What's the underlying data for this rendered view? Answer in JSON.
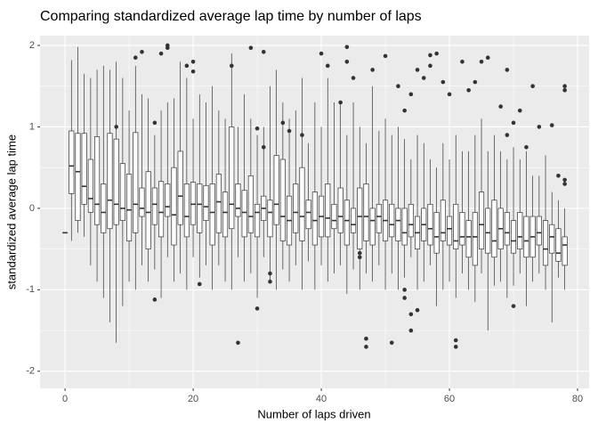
{
  "chart_data": {
    "type": "boxplot",
    "title": "Comparing standardized average lap time by number of laps",
    "x_label": "Number of laps driven",
    "y_label": "standardized average lap time",
    "xlim": [
      -3.9,
      81.8
    ],
    "ylim": [
      -2.21,
      2.12
    ],
    "xticks": [
      0,
      20,
      40,
      60,
      80
    ],
    "yticks": [
      -2,
      -1,
      0,
      1,
      2
    ],
    "x_minor_grid": [
      10,
      30,
      50,
      70
    ],
    "y_minor_grid": [
      -1.5,
      -0.5,
      0.5,
      1.5
    ],
    "grid": true,
    "panel_color": "#ebebeb",
    "box_fill": "#ffffff",
    "line_color": "#333333",
    "x": [
      0,
      1,
      2,
      3,
      4,
      5,
      6,
      7,
      8,
      9,
      10,
      11,
      12,
      13,
      14,
      15,
      16,
      17,
      18,
      19,
      20,
      21,
      22,
      23,
      24,
      25,
      26,
      27,
      28,
      29,
      30,
      31,
      32,
      33,
      34,
      35,
      36,
      37,
      38,
      39,
      40,
      41,
      42,
      43,
      44,
      45,
      46,
      47,
      48,
      49,
      50,
      51,
      52,
      53,
      54,
      55,
      56,
      57,
      58,
      59,
      60,
      61,
      62,
      63,
      64,
      65,
      66,
      67,
      68,
      69,
      70,
      71,
      72,
      73,
      74,
      75,
      76,
      77,
      78
    ],
    "lower": [
      -0.3,
      -0.4,
      -0.3,
      -0.35,
      -0.7,
      -0.9,
      -1.1,
      -1.4,
      -1.65,
      -1.2,
      -0.9,
      -1.0,
      -0.7,
      -0.9,
      -0.75,
      -1.1,
      -0.6,
      -0.9,
      -0.8,
      -1.0,
      -0.6,
      -0.85,
      -0.7,
      -1.0,
      -0.7,
      -0.9,
      -1.0,
      -0.6,
      -0.9,
      -0.8,
      -1.1,
      -0.6,
      -0.9,
      -1.0,
      -0.75,
      -0.9,
      -0.7,
      -1.0,
      -0.65,
      -1.0,
      -0.7,
      -0.9,
      -0.8,
      -0.7,
      -1.05,
      -0.75,
      -1.0,
      -0.8,
      -0.9,
      -0.7,
      -1.0,
      -0.8,
      -1.0,
      -0.85,
      -0.6,
      -1.0,
      -0.9,
      -0.7,
      -1.2,
      -1.0,
      -0.9,
      -1.1,
      -0.8,
      -1.0,
      -1.15,
      -0.8,
      -1.5,
      -0.95,
      -0.9,
      -1.1,
      -0.95,
      -0.8,
      -1.2,
      -0.9,
      -0.8,
      -1.0,
      -1.4,
      -0.85,
      -1.0
    ],
    "q1": [
      -0.3,
      0.18,
      -0.15,
      0.05,
      -0.05,
      -0.2,
      -0.3,
      -0.25,
      -0.2,
      -0.15,
      -0.4,
      -0.3,
      -0.1,
      -0.5,
      -0.2,
      -0.35,
      -0.1,
      -0.45,
      -0.2,
      -0.35,
      -0.2,
      -0.3,
      -0.15,
      -0.45,
      -0.3,
      -0.35,
      -0.25,
      -0.1,
      -0.35,
      -0.3,
      -0.35,
      -0.15,
      -0.35,
      -0.2,
      -0.4,
      -0.45,
      -0.3,
      -0.4,
      -0.25,
      -0.45,
      -0.35,
      -0.35,
      -0.25,
      -0.3,
      -0.45,
      -0.3,
      -0.5,
      -0.4,
      -0.45,
      -0.3,
      -0.4,
      -0.35,
      -0.4,
      -0.45,
      -0.35,
      -0.5,
      -0.4,
      -0.45,
      -0.55,
      -0.4,
      -0.45,
      -0.5,
      -0.45,
      -0.6,
      -0.7,
      -0.5,
      -0.55,
      -0.6,
      -0.5,
      -0.45,
      -0.55,
      -0.5,
      -0.6,
      -0.6,
      -0.45,
      -0.7,
      -0.55,
      -0.65,
      -0.7
    ],
    "median": [
      -0.3,
      0.52,
      0.45,
      0.27,
      0.12,
      0.05,
      -0.05,
      0.1,
      0.05,
      0.0,
      -0.02,
      0.05,
      0.0,
      -0.05,
      0.05,
      -0.05,
      0.02,
      -0.08,
      0.15,
      -0.1,
      0.05,
      0.05,
      0.02,
      -0.05,
      0.08,
      -0.05,
      0.05,
      0.0,
      -0.05,
      -0.1,
      -0.05,
      0.0,
      -0.05,
      0.05,
      -0.1,
      -0.15,
      -0.05,
      -0.1,
      -0.05,
      -0.15,
      -0.1,
      -0.12,
      -0.15,
      -0.1,
      -0.15,
      -0.2,
      -0.1,
      -0.1,
      -0.15,
      -0.1,
      -0.15,
      -0.2,
      -0.15,
      -0.3,
      -0.2,
      -0.3,
      -0.2,
      -0.25,
      -0.35,
      -0.3,
      -0.25,
      -0.4,
      -0.35,
      -0.35,
      -0.35,
      -0.2,
      -0.3,
      -0.4,
      -0.25,
      -0.3,
      -0.4,
      -0.35,
      -0.4,
      -0.35,
      -0.3,
      -0.5,
      -0.35,
      -0.55,
      -0.45
    ],
    "q3": [
      -0.3,
      0.95,
      0.92,
      0.92,
      0.6,
      0.88,
      0.3,
      0.92,
      0.85,
      0.55,
      0.42,
      0.93,
      0.25,
      0.45,
      0.25,
      0.33,
      0.3,
      0.5,
      0.7,
      0.3,
      0.32,
      0.3,
      0.28,
      0.3,
      0.42,
      0.2,
      1.0,
      0.3,
      0.22,
      0.4,
      0.05,
      0.15,
      0.1,
      0.65,
      0.6,
      0.15,
      0.3,
      0.5,
      0.1,
      0.2,
      0.15,
      0.3,
      0.05,
      0.25,
      0.1,
      0.0,
      0.25,
      0.3,
      0.0,
      0.05,
      0.1,
      0.05,
      0.0,
      0.0,
      0.05,
      -0.1,
      0.0,
      0.05,
      -0.05,
      0.1,
      -0.1,
      0.05,
      -0.05,
      -0.15,
      -0.05,
      0.2,
      0.0,
      0.1,
      0.0,
      -0.05,
      -0.15,
      -0.05,
      -0.1,
      -0.1,
      -0.1,
      -0.15,
      -0.2,
      -0.25,
      -0.35
    ],
    "upper": [
      -0.3,
      1.82,
      1.98,
      1.65,
      1.6,
      1.7,
      1.75,
      1.7,
      1.8,
      1.6,
      1.2,
      1.75,
      1.4,
      1.35,
      0.9,
      1.2,
      1.3,
      1.35,
      1.8,
      1.6,
      1.1,
      1.4,
      1.3,
      1.5,
      1.2,
      1.1,
      1.9,
      1.0,
      1.4,
      1.1,
      0.9,
      1.0,
      1.5,
      1.7,
      1.3,
      1.1,
      1.2,
      1.6,
      0.8,
      1.3,
      1.0,
      1.6,
      1.3,
      1.3,
      0.9,
      1.3,
      1.0,
      0.8,
      1.5,
      0.95,
      1.1,
      0.9,
      1.0,
      0.85,
      0.6,
      0.9,
      0.8,
      0.6,
      0.5,
      0.8,
      0.6,
      0.9,
      0.7,
      0.7,
      0.9,
      1.1,
      0.7,
      0.9,
      0.7,
      0.6,
      0.75,
      0.6,
      0.7,
      0.4,
      0.4,
      0.65,
      0.2,
      0.1,
      0.0
    ],
    "outliers": {
      "x": [
        8,
        11,
        12,
        14,
        14,
        15,
        16,
        16,
        19,
        20,
        20,
        21,
        26,
        27,
        29,
        30,
        30,
        31,
        31,
        32,
        32,
        34,
        35,
        37,
        40,
        41,
        43,
        44,
        44,
        45,
        46,
        46,
        47,
        47,
        48,
        50,
        51,
        52,
        53,
        53,
        53,
        54,
        54,
        54,
        55,
        55,
        56,
        57,
        57,
        58,
        59,
        60,
        61,
        61,
        62,
        63,
        64,
        65,
        66,
        68,
        69,
        69,
        70,
        70,
        71,
        72,
        73,
        74,
        76,
        77,
        78,
        78,
        78,
        78
      ],
      "y": [
        1.0,
        1.85,
        1.92,
        1.05,
        -1.12,
        1.9,
        1.97,
        2.0,
        1.75,
        1.8,
        1.68,
        -0.93,
        1.75,
        -1.65,
        1.97,
        0.98,
        -1.23,
        1.92,
        0.75,
        -0.8,
        -0.9,
        1.05,
        0.95,
        0.9,
        1.9,
        1.75,
        1.3,
        1.98,
        1.8,
        1.6,
        -0.6,
        -0.55,
        -1.6,
        -1.7,
        1.7,
        1.87,
        -1.65,
        1.5,
        1.2,
        -1.0,
        -1.1,
        1.4,
        -1.3,
        -1.5,
        1.7,
        -1.25,
        1.6,
        1.88,
        1.75,
        1.9,
        1.55,
        1.4,
        -1.62,
        -1.7,
        1.8,
        1.45,
        1.55,
        1.8,
        1.85,
        1.25,
        1.7,
        0.9,
        1.05,
        -1.2,
        1.2,
        0.75,
        1.5,
        1.0,
        1.02,
        0.4,
        1.45,
        1.5,
        0.3,
        0.35
      ]
    }
  }
}
